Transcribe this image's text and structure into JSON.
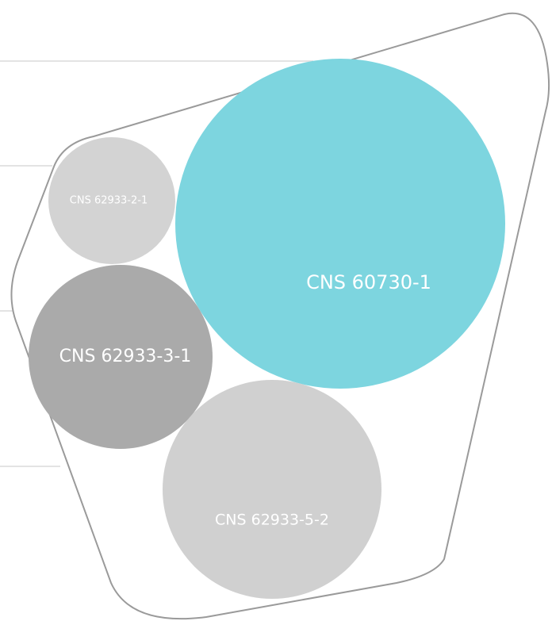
{
  "bubbles": [
    {
      "label": "CNS 60730-1"
    },
    {
      "label": "CNS 62933-2-1"
    },
    {
      "label": "CNS 62933-3-1"
    },
    {
      "label": "CNS 62933-5-2"
    }
  ]
}
